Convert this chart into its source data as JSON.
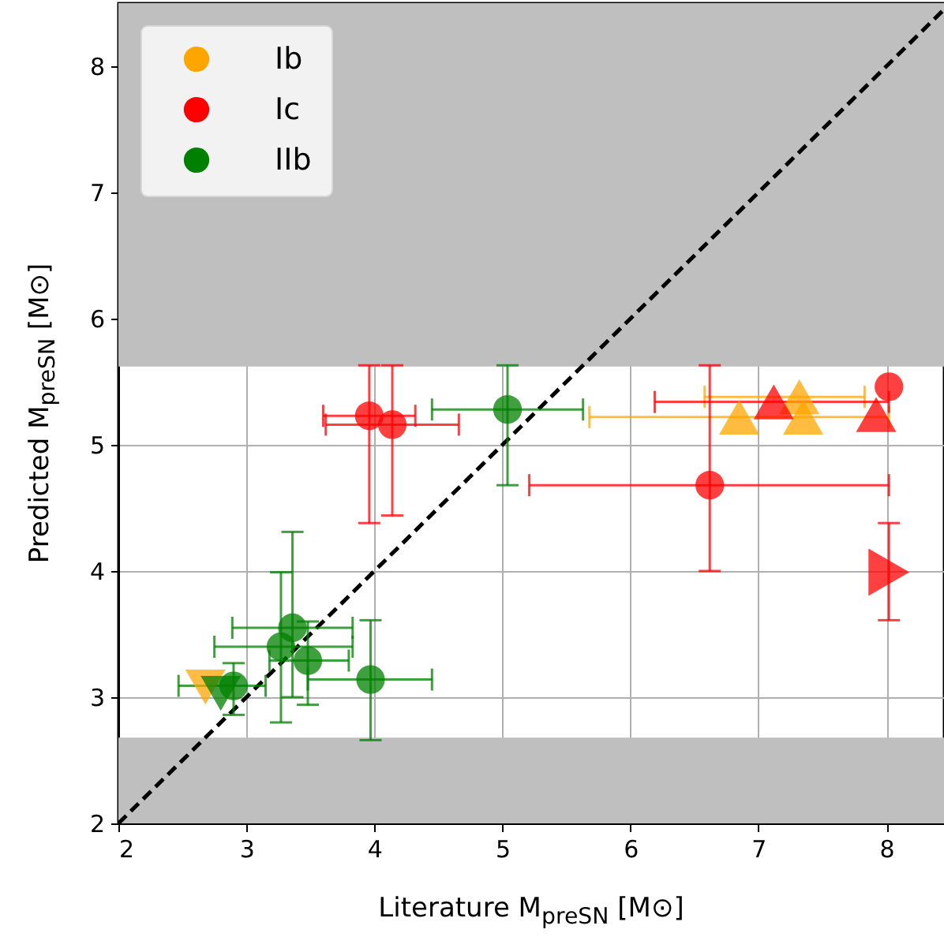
{
  "chart_data": {
    "type": "scatter",
    "xlabel": "Literature M$_{preSN}$ [M⊙]",
    "ylabel": "Predicted M$_{preSN}$ [M⊙]",
    "xlim": [
      2,
      8.45
    ],
    "ylim": [
      2,
      8.5
    ],
    "xticks": [
      2,
      3,
      4,
      5,
      6,
      7,
      8
    ],
    "yticks": [
      2,
      3,
      4,
      5,
      6,
      7,
      8
    ],
    "grid": true,
    "legend": "top left",
    "bands": [
      {
        "axis": "y",
        "from": 5.62,
        "to": 8.5,
        "color": "#bfbfbf"
      },
      {
        "axis": "y",
        "from": 2,
        "to": 2.68,
        "color": "#bfbfbf"
      }
    ],
    "series": [
      {
        "name": "Ib",
        "color": "#ffa500",
        "marker": "triangle-up",
        "x": [
          6.85,
          7.32,
          7.35
        ],
        "values": [
          5.22,
          5.38,
          5.22
        ],
        "xerrors": [
          [
            5.68,
            8.02
          ],
          [
            6.58,
            7.83
          ],
          null
        ]
      },
      {
        "color": "#ffa500",
        "marker": "triangle-down",
        "x": [
          2.68
        ],
        "values": [
          3.08
        ]
      },
      {
        "name": "Ic",
        "color": "#ff0000",
        "marker": "circle",
        "x": [
          3.96,
          4.14,
          6.62,
          8.02
        ],
        "values": [
          5.23,
          5.16,
          4.68,
          5.46
        ],
        "xerrors": [
          [
            3.6,
            4.32
          ],
          [
            3.62,
            4.66
          ],
          [
            5.21,
            8.02
          ],
          null
        ],
        "errors": [
          [
            4.38,
            5.63
          ],
          [
            4.44,
            5.63
          ],
          [
            4.0,
            5.63
          ],
          null
        ]
      },
      {
        "color": "#ff0000",
        "marker": "triangle-up",
        "x": [
          7.12,
          7.92
        ],
        "values": [
          5.34,
          5.24
        ],
        "xerrors": [
          [
            6.19,
            8.02
          ],
          null
        ]
      },
      {
        "color": "#ff0000",
        "marker": "triangle-right",
        "x": [
          8.02
        ],
        "values": [
          3.99
        ],
        "errors": [
          [
            3.61,
            4.38
          ]
        ]
      },
      {
        "name": "IIb",
        "color": "#008000",
        "marker": "circle",
        "x": [
          3.36,
          3.27,
          3.48,
          3.97,
          2.9,
          5.04
        ],
        "values": [
          3.55,
          3.4,
          3.29,
          3.14,
          3.09,
          5.28
        ],
        "xerrors": [
          [
            2.89,
            3.83
          ],
          [
            2.75,
            3.83
          ],
          [
            3.18,
            3.8
          ],
          [
            3.48,
            4.45
          ],
          [
            2.47,
            3.15
          ],
          [
            4.45,
            5.63
          ]
        ],
        "errors": [
          [
            3.0,
            4.31
          ],
          [
            2.8,
            3.99
          ],
          [
            2.94,
            3.6
          ],
          [
            2.66,
            3.61
          ],
          [
            2.86,
            3.27
          ],
          [
            4.68,
            5.63
          ]
        ]
      },
      {
        "color": "#008000",
        "marker": "triangle-down",
        "x": [
          2.8
        ],
        "values": [
          3.03
        ]
      },
      {
        "type": "line",
        "color": "#000000",
        "line_style": "dashed",
        "x": [
          2,
          8.45
        ],
        "values": [
          2,
          8.45
        ]
      }
    ]
  }
}
